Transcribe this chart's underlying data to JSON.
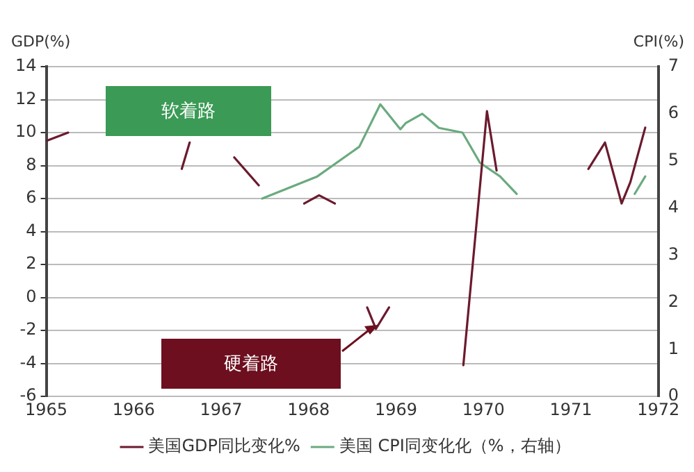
{
  "chart_data": {
    "type": "line",
    "ylabel": "GDP(%)",
    "y2label": "CPI(%)",
    "xlim": [
      1965,
      1972
    ],
    "xticks": [
      1965,
      1966,
      1967,
      1968,
      1969,
      1970,
      1971,
      1972
    ],
    "ylim": [
      -6,
      14
    ],
    "yticks": [
      -6,
      -4,
      -2,
      0,
      2,
      4,
      6,
      8,
      10,
      12,
      14
    ],
    "y2lim": [
      0,
      7
    ],
    "y2ticks": [
      0,
      1,
      2,
      3,
      4,
      5,
      6,
      7
    ],
    "grid": "y",
    "legend": "bottom",
    "marker": "none",
    "line_style": "solid",
    "annotations": [
      "软着路",
      "硬着路"
    ],
    "series": [
      {
        "name": "美国GDP同比变化%",
        "color": "#6b1a2e",
        "x": [
          1965,
          1965.25,
          1965.4,
          1966.55,
          1966.64,
          1966.75,
          1967.15,
          1967.43,
          1967.6,
          1967.95,
          1968.12,
          1968.3,
          1968.45,
          1968.67,
          1968.77,
          1968.92,
          1969.2,
          1969.77,
          1970.04,
          1970.15,
          1970.3,
          1971.2,
          1971.39,
          1971.58,
          1971.68,
          1971.85
        ],
        "values": [
          9.5,
          10,
          null,
          7.8,
          9.4,
          null,
          8.5,
          6.8,
          null,
          5.7,
          6.2,
          5.7,
          null,
          -0.6,
          -1.9,
          -0.6,
          null,
          -4.1,
          11.3,
          7.7,
          null,
          7.8,
          9.4,
          5.7,
          7.0,
          10.3
        ]
      },
      {
        "name": "美国 CPI同变化化（%，右轴）",
        "color": "#6aaa7f",
        "axis": "y2",
        "x": [
          1967.47,
          1968.1,
          1968.58,
          1968.82,
          1969.05,
          1969.11,
          1969.3,
          1969.49,
          1969.76,
          1969.96,
          1970.19,
          1970.38,
          1970.6,
          1971.73,
          1971.85
        ],
        "values": [
          4.2,
          4.67,
          5.3,
          6.2,
          5.67,
          5.8,
          6.0,
          5.7,
          5.6,
          4.96,
          4.67,
          4.3,
          null,
          4.3,
          4.67
        ]
      }
    ]
  }
}
